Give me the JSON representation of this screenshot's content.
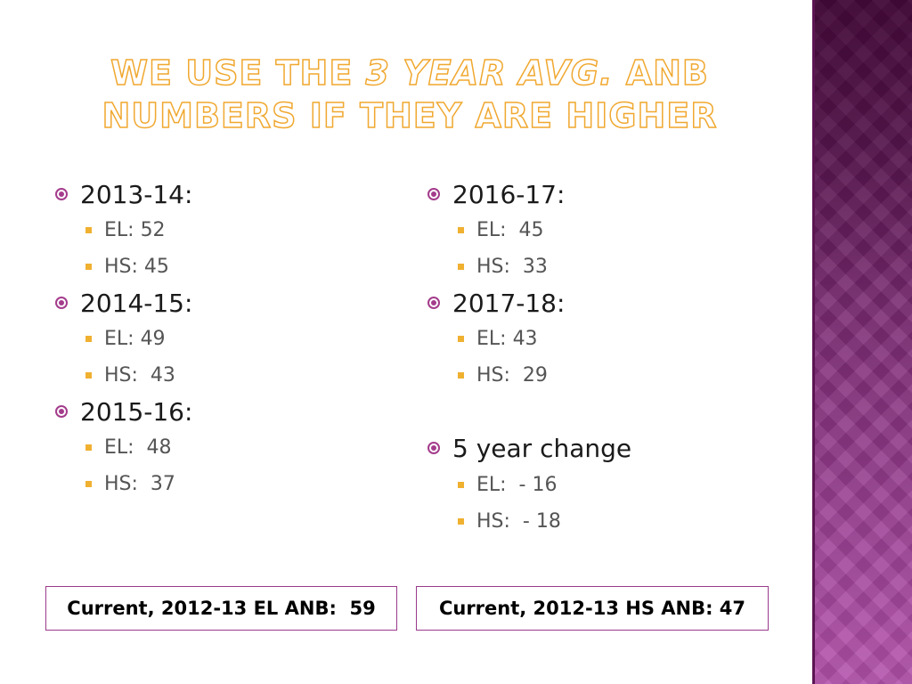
{
  "title": {
    "part1": "We use the ",
    "emphasis": "3 year avg.",
    "part2": " ANB numbers if they are higher"
  },
  "left_column": [
    {
      "heading": "2013-14:",
      "items": [
        "EL: 52",
        "HS: 45"
      ]
    },
    {
      "heading": "2014-15:",
      "items": [
        "EL: 49",
        "HS:  43"
      ]
    },
    {
      "heading": "2015-16:",
      "items": [
        "EL:  48",
        "HS:  37"
      ]
    }
  ],
  "right_column": [
    {
      "heading": "2016-17:",
      "items": [
        "EL:  45",
        "HS:  33"
      ]
    },
    {
      "heading": "2017-18:",
      "items": [
        "EL: 43",
        "HS:  29"
      ]
    },
    {
      "heading": "5 year change",
      "items": [
        "EL:  - 16",
        "HS:  - 18"
      ]
    }
  ],
  "footer": {
    "el_box": "Current, 2012-13 EL ANB:  59",
    "hs_box": "Current, 2012-13 HS ANB: 47"
  },
  "colors": {
    "accent_purple": "#a43c8c",
    "bullet_orange": "#f0b030",
    "title_outline": "#f0a830"
  },
  "icons": {
    "level1_bullet": "target-bullet-icon",
    "level2_bullet": "square-bullet-icon"
  }
}
